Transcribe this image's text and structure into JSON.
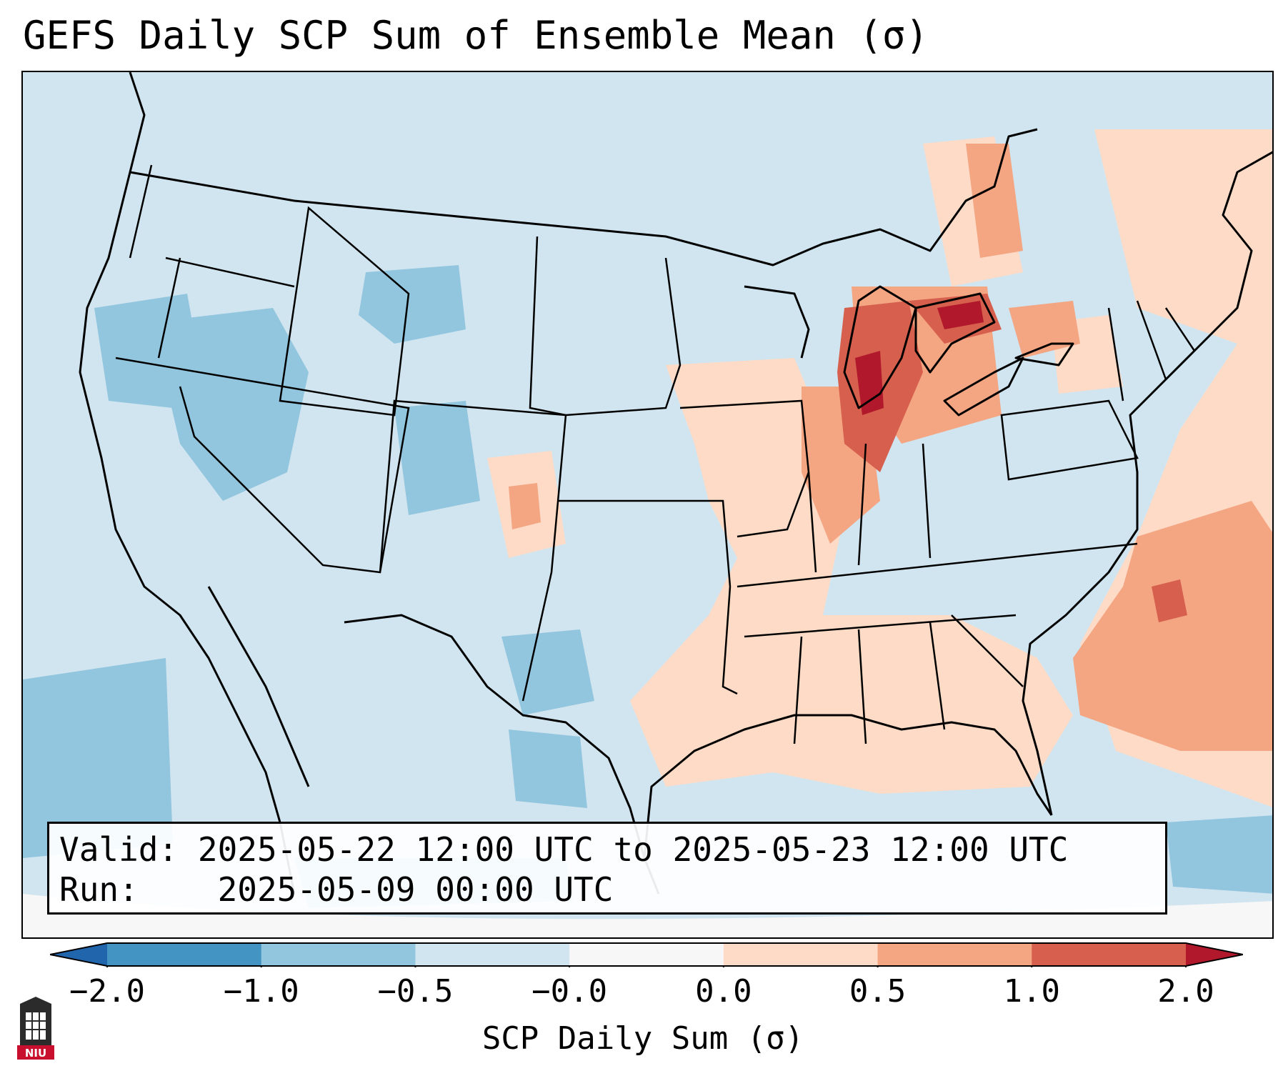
{
  "title": "GEFS Daily SCP Sum of Ensemble Mean (σ)",
  "info": {
    "valid_label": "Valid:",
    "valid_value": "2025-05-22 12:00 UTC to 2025-05-23 12:00 UTC",
    "run_label": "Run:",
    "run_value": "2025-05-09 00:00 UTC"
  },
  "colorbar": {
    "label": "SCP Daily Sum (σ)",
    "tick_labels": [
      "−2.0",
      "−1.0",
      "−0.5",
      "−0.0",
      "0.0",
      "0.5",
      "1.0",
      "2.0"
    ],
    "colors": [
      "#2166ac",
      "#4393c3",
      "#92c5de",
      "#d1e5f0",
      "#fddbc7",
      "#f4a582",
      "#d6604d",
      "#b2182b"
    ],
    "under_color": "#2166ac",
    "over_color": "#b2182b",
    "missing_color": "#f7f7f7"
  },
  "logo": {
    "text": "NIU",
    "color": "#c8102e"
  }
}
